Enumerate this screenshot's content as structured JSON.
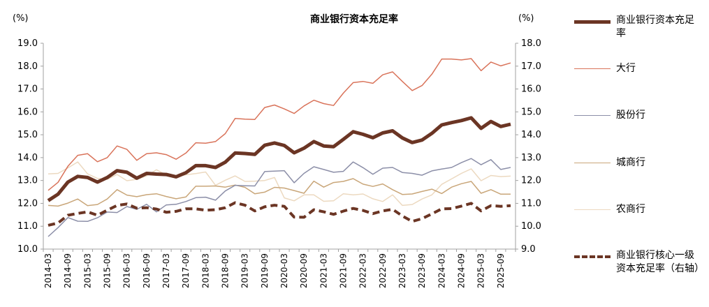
{
  "chart_data": {
    "type": "line",
    "title": "商业银行资本充足率",
    "y_left_unit": "(%)",
    "y_right_unit": "(%)",
    "ylim_left": [
      10.0,
      19.0
    ],
    "ylim_right": [
      9.0,
      18.0
    ],
    "yticks_left": [
      "10.0",
      "11.0",
      "12.0",
      "13.0",
      "14.0",
      "15.0",
      "16.0",
      "17.0",
      "18.0",
      "19.0"
    ],
    "yticks_right": [
      "9.0",
      "10.0",
      "11.0",
      "12.0",
      "13.0",
      "14.0",
      "15.0",
      "16.0",
      "17.0",
      "18.0"
    ],
    "xticks": [
      "2014-03",
      "2014-09",
      "2015-03",
      "2015-09",
      "2016-03",
      "2016-09",
      "2017-03",
      "2017-09",
      "2018-03",
      "2018-09",
      "2019-03",
      "2019-09",
      "2020-03",
      "2020-09",
      "2021-03",
      "2021-09",
      "2022-03",
      "2022-09",
      "2023-03",
      "2023-09",
      "2024-03",
      "2024-09",
      "2025-03",
      "2025-09"
    ],
    "x": [
      "2014-03",
      "2014-06",
      "2014-09",
      "2014-12",
      "2015-03",
      "2015-06",
      "2015-09",
      "2015-12",
      "2016-03",
      "2016-06",
      "2016-09",
      "2016-12",
      "2017-03",
      "2017-06",
      "2017-09",
      "2017-12",
      "2018-03",
      "2018-06",
      "2018-09",
      "2018-12",
      "2019-03",
      "2019-06",
      "2019-09",
      "2019-12",
      "2020-03",
      "2020-06",
      "2020-09",
      "2020-12",
      "2021-03",
      "2021-06",
      "2021-09",
      "2021-12",
      "2022-03",
      "2022-06",
      "2022-09",
      "2022-12",
      "2023-03",
      "2023-06",
      "2023-09",
      "2023-12",
      "2024-03",
      "2024-06",
      "2024-09",
      "2024-12",
      "2025-03",
      "2025-06",
      "2025-09",
      "2025-12"
    ],
    "grid": false,
    "legend_position": "right",
    "series": [
      {
        "name": "商业银行资本充足率",
        "axis": "left",
        "color": "#6b3524",
        "width": 5,
        "dash": "",
        "values": [
          12.12,
          12.4,
          12.93,
          13.18,
          13.13,
          12.93,
          13.13,
          13.43,
          13.36,
          13.1,
          13.31,
          13.28,
          13.26,
          13.16,
          13.34,
          13.65,
          13.65,
          13.57,
          13.8,
          14.2,
          14.18,
          14.14,
          14.54,
          14.64,
          14.53,
          14.21,
          14.41,
          14.7,
          14.51,
          14.48,
          14.8,
          15.13,
          15.02,
          14.87,
          15.08,
          15.17,
          14.86,
          14.66,
          14.77,
          15.06,
          15.43,
          15.53,
          15.62,
          15.74,
          15.28,
          15.58,
          15.36,
          15.46
        ]
      },
      {
        "name": "大行",
        "axis": "left",
        "color": "#d9735a",
        "width": 1.5,
        "dash": "",
        "values": [
          12.57,
          12.92,
          13.62,
          14.1,
          14.17,
          13.82,
          14.0,
          14.51,
          14.36,
          13.88,
          14.17,
          14.21,
          14.13,
          13.93,
          14.2,
          14.65,
          14.63,
          14.7,
          15.05,
          15.71,
          15.68,
          15.67,
          16.19,
          16.3,
          16.13,
          15.93,
          16.26,
          16.51,
          16.36,
          16.28,
          16.82,
          17.28,
          17.33,
          17.25,
          17.62,
          17.75,
          17.33,
          16.93,
          17.15,
          17.65,
          18.31,
          18.31,
          18.27,
          18.33,
          17.8,
          18.18,
          18.01,
          18.14
        ]
      },
      {
        "name": "股份行",
        "axis": "left",
        "color": "#8c8fa8",
        "width": 1.5,
        "dash": "",
        "values": [
          10.55,
          10.94,
          11.38,
          11.22,
          11.21,
          11.37,
          11.62,
          11.6,
          11.86,
          11.74,
          11.96,
          11.63,
          11.93,
          11.96,
          12.08,
          12.25,
          12.27,
          12.14,
          12.54,
          12.79,
          12.77,
          12.76,
          13.39,
          13.41,
          13.43,
          12.9,
          13.31,
          13.6,
          13.48,
          13.36,
          13.4,
          13.81,
          13.56,
          13.27,
          13.54,
          13.57,
          13.35,
          13.31,
          13.23,
          13.42,
          13.5,
          13.57,
          13.78,
          13.96,
          13.69,
          13.91,
          13.48,
          13.57
        ]
      },
      {
        "name": "城商行",
        "axis": "left",
        "color": "#c9a679",
        "width": 1.5,
        "dash": "",
        "values": [
          11.91,
          11.88,
          12.01,
          12.19,
          11.9,
          11.95,
          12.19,
          12.6,
          12.36,
          12.29,
          12.38,
          12.42,
          12.3,
          12.2,
          12.28,
          12.75,
          12.75,
          12.76,
          12.71,
          12.8,
          12.7,
          12.42,
          12.49,
          12.7,
          12.67,
          12.56,
          12.44,
          12.97,
          12.71,
          12.91,
          12.96,
          13.08,
          12.84,
          12.74,
          12.85,
          12.6,
          12.39,
          12.41,
          12.52,
          12.62,
          12.43,
          12.71,
          12.86,
          12.96,
          12.44,
          12.6,
          12.4,
          12.4
        ]
      },
      {
        "name": "农商行",
        "axis": "left",
        "color": "#ecd9c0",
        "width": 1.5,
        "dash": "",
        "values": [
          13.29,
          13.31,
          13.55,
          13.81,
          13.29,
          13.09,
          13.05,
          13.26,
          12.99,
          13.05,
          13.2,
          13.47,
          13.24,
          13.18,
          13.25,
          13.3,
          13.37,
          12.79,
          13.01,
          13.2,
          12.96,
          12.97,
          13.0,
          13.13,
          12.24,
          12.11,
          12.37,
          12.37,
          12.09,
          12.11,
          12.42,
          12.37,
          12.41,
          12.2,
          12.08,
          12.37,
          11.91,
          11.95,
          12.19,
          12.37,
          12.83,
          13.07,
          13.31,
          13.51,
          12.99,
          13.22,
          13.17,
          13.19
        ]
      },
      {
        "name": "商业银行核心一级资本充足率（右轴）",
        "axis": "right",
        "color": "#6b3524",
        "width": 4,
        "dash": "10,6",
        "values": [
          10.04,
          10.14,
          10.48,
          10.56,
          10.63,
          10.48,
          10.7,
          10.91,
          10.97,
          10.79,
          10.81,
          10.75,
          10.61,
          10.65,
          10.76,
          10.76,
          10.7,
          10.72,
          10.81,
          11.03,
          10.92,
          10.67,
          10.85,
          10.92,
          10.87,
          10.4,
          10.39,
          10.72,
          10.63,
          10.52,
          10.66,
          10.78,
          10.69,
          10.55,
          10.67,
          10.74,
          10.45,
          10.21,
          10.33,
          10.54,
          10.76,
          10.77,
          10.88,
          11.0,
          10.67,
          10.9,
          10.87,
          10.9
        ]
      }
    ]
  }
}
